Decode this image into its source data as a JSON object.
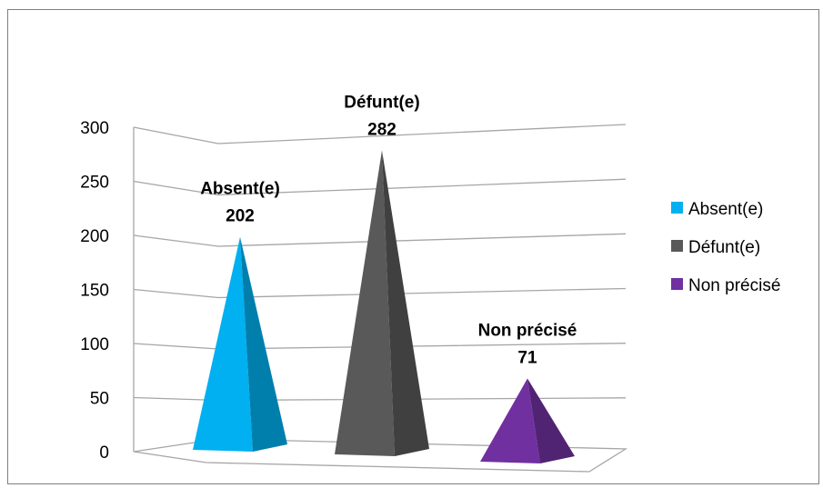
{
  "chart_data": {
    "type": "bar",
    "style": "3d-pyramid",
    "categories": [
      "Absent(e)",
      "Défunt(e)",
      "Non précisé"
    ],
    "values": [
      202,
      282,
      71
    ],
    "colors": [
      "#00b0f0",
      "#595959",
      "#7030a0"
    ],
    "ylim": [
      0,
      300
    ],
    "yticks": [
      0,
      50,
      100,
      150,
      200,
      250,
      300
    ],
    "grid": true,
    "legend": {
      "position": "right",
      "entries": [
        "Absent(e)",
        "Défunt(e)",
        "Non précisé"
      ]
    },
    "data_labels": [
      "Absent(e) 202",
      "Défunt(e) 282",
      "Non précisé 71"
    ]
  }
}
